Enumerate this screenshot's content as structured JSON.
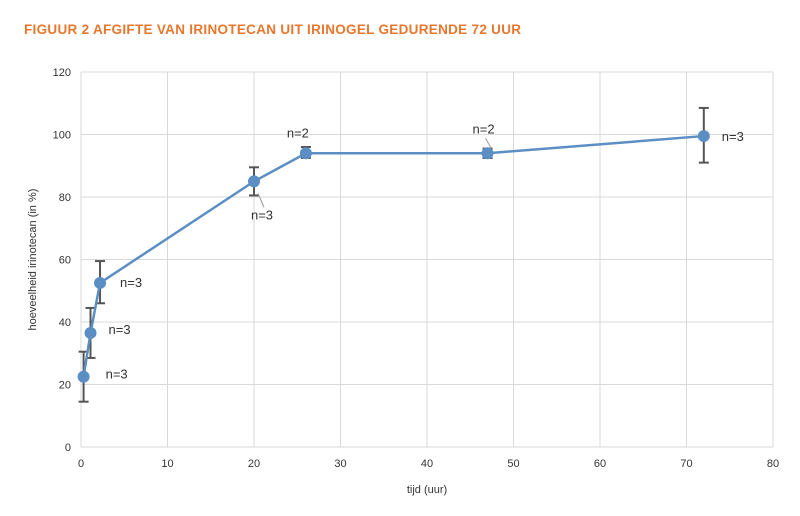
{
  "figure": {
    "title": "FIGUUR 2  AFGIFTE VAN IRINOTECAN UIT IRINOGEL GEDURENDE 72 UUR"
  },
  "chart_data": {
    "type": "line",
    "xlabel": "tijd (uur)",
    "ylabel": "hoeveelheid irinotecan (in %)",
    "xlim": [
      0,
      80
    ],
    "ylim": [
      0,
      120
    ],
    "x_ticks": [
      0,
      10,
      20,
      30,
      40,
      50,
      60,
      70,
      80
    ],
    "y_ticks": [
      0,
      20,
      40,
      60,
      80,
      100,
      120
    ],
    "grid": true,
    "series": [
      {
        "x": [
          0.3,
          1.1,
          2.2,
          20,
          26,
          47,
          72
        ],
        "y": [
          22.5,
          36.5,
          52.5,
          85,
          94,
          94,
          99.5
        ],
        "err_low": [
          14.5,
          28.5,
          46,
          80.5,
          92.5,
          92.5,
          91
        ],
        "err_high": [
          30.5,
          44.5,
          59.5,
          89.5,
          96,
          95.5,
          108.5
        ]
      }
    ],
    "annotations": [
      {
        "text": "n=3",
        "x": 0.3,
        "y": 22.5
      },
      {
        "text": "n=3",
        "x": 1.1,
        "y": 36.5
      },
      {
        "text": "n=3",
        "x": 2.2,
        "y": 52.5
      },
      {
        "text": "n=3",
        "x": 20,
        "y": 85
      },
      {
        "text": "n=2",
        "x": 26,
        "y": 94
      },
      {
        "text": "n=2",
        "x": 47,
        "y": 94
      },
      {
        "text": "n=3",
        "x": 72,
        "y": 99.5
      }
    ],
    "colors": {
      "line": "#5b8fc4",
      "marker": "#5b8fc4",
      "error_bar": "#555555",
      "grid": "#d9d9d9"
    }
  }
}
